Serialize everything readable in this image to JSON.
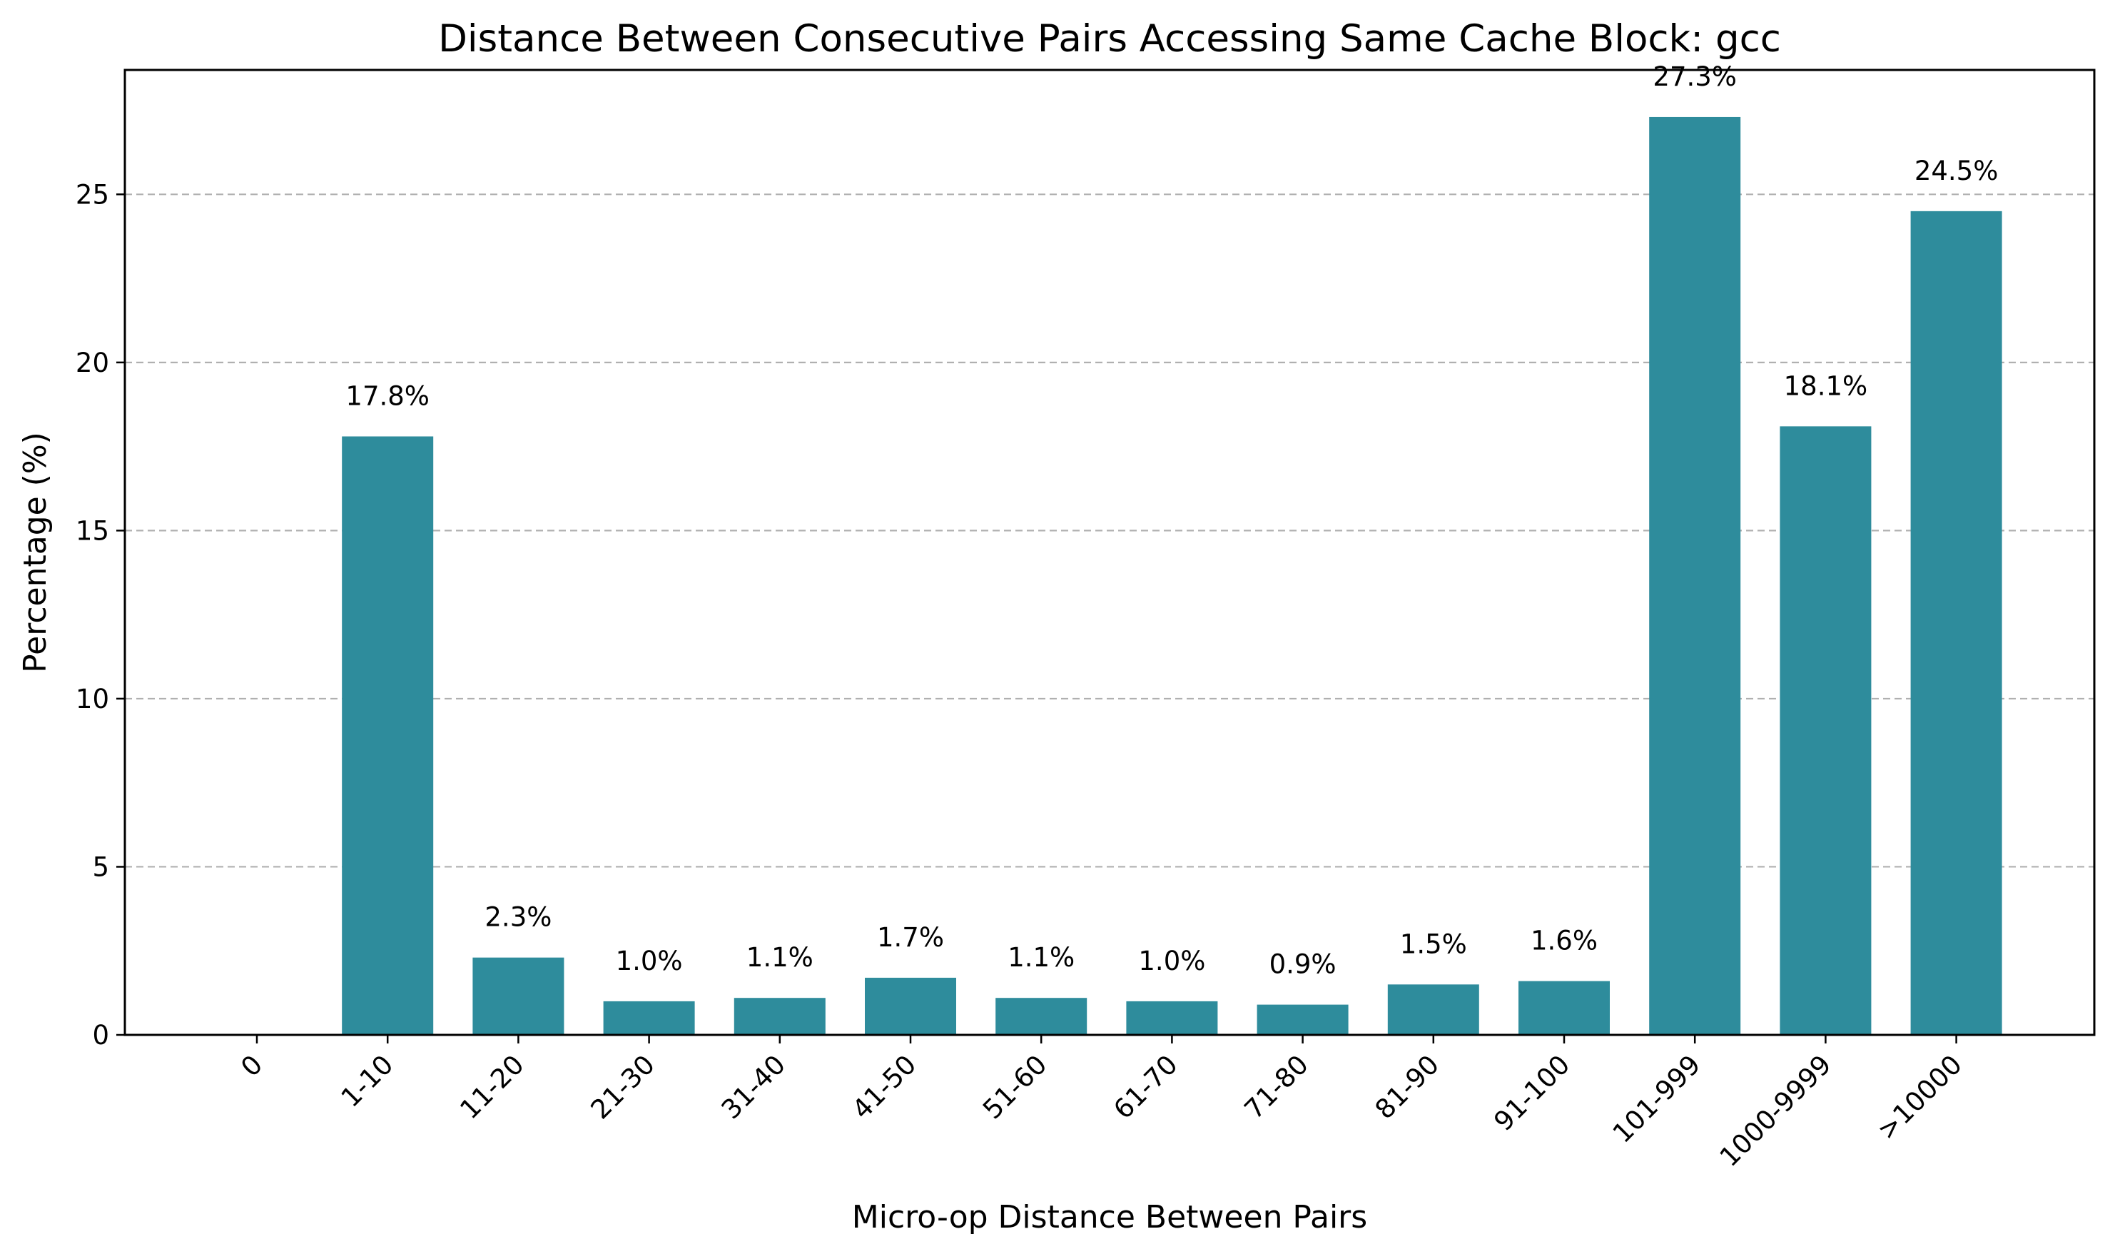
{
  "chart_data": {
    "type": "bar",
    "title": "Distance Between Consecutive Pairs Accessing Same Cache Block: gcc",
    "xlabel": "Micro-op Distance Between Pairs",
    "ylabel": "Percentage (%)",
    "categories": [
      "0",
      "1-10",
      "11-20",
      "21-30",
      "31-40",
      "41-50",
      "51-60",
      "61-70",
      "71-80",
      "81-90",
      "91-100",
      "101-999",
      "1000-9999",
      ">10000"
    ],
    "values": [
      0,
      17.8,
      2.3,
      1.0,
      1.1,
      1.7,
      1.1,
      1.0,
      0.9,
      1.5,
      1.6,
      27.3,
      18.1,
      24.5
    ],
    "data_labels": [
      "",
      "17.8%",
      "2.3%",
      "1.0%",
      "1.1%",
      "1.7%",
      "1.1%",
      "1.0%",
      "0.9%",
      "1.5%",
      "1.6%",
      "27.3%",
      "18.1%",
      "24.5%"
    ],
    "yticks": [
      0,
      5,
      10,
      15,
      20,
      25
    ],
    "ylim": [
      0,
      28.7
    ],
    "grid": "y-dashed",
    "bar_color": "#2e8c9c"
  }
}
